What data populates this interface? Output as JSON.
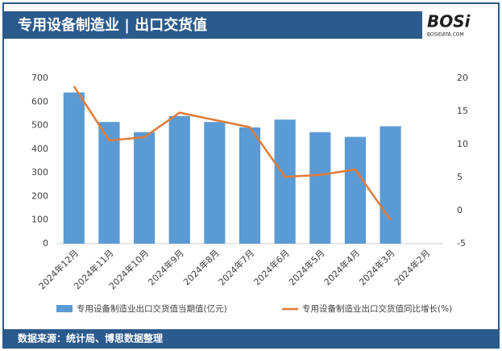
{
  "header": {
    "title": "专用设备制造业 | 出口交货值",
    "logo": "BOSi",
    "logo_sub": "BOSIDATA.COM"
  },
  "chart_data": {
    "type": "bar-line",
    "categories": [
      "2024年12月",
      "2024年11月",
      "2024年10月",
      "2024年9月",
      "2024年8月",
      "2024年7月",
      "2024年6月",
      "2024年5月",
      "2024年4月",
      "2024年3月",
      "2024年2月"
    ],
    "series": [
      {
        "name": "专用设备制造业出口交货值当期值(亿元)",
        "type": "bar",
        "color": "#5b9bd5",
        "values": [
          640,
          515,
          472,
          540,
          515,
          492,
          525,
          472,
          452,
          497,
          null
        ]
      },
      {
        "name": "专用设备制造业出口交货值同比增长(%)",
        "type": "line",
        "axis": "y2",
        "color": "#e07b39",
        "values": [
          18.8,
          10.6,
          11.1,
          14.8,
          13.7,
          12.6,
          5.1,
          5.4,
          6.2,
          -1.4,
          null
        ]
      }
    ],
    "ylim": [
      0,
      700
    ],
    "yticks": [
      0,
      100,
      200,
      300,
      400,
      500,
      600,
      700
    ],
    "y2lim": [
      -5,
      20
    ],
    "y2ticks": [
      -5,
      0,
      5,
      10,
      15,
      20
    ],
    "legend": "bottom"
  },
  "footer": {
    "source": "数据来源：统计局、博思数据整理"
  }
}
